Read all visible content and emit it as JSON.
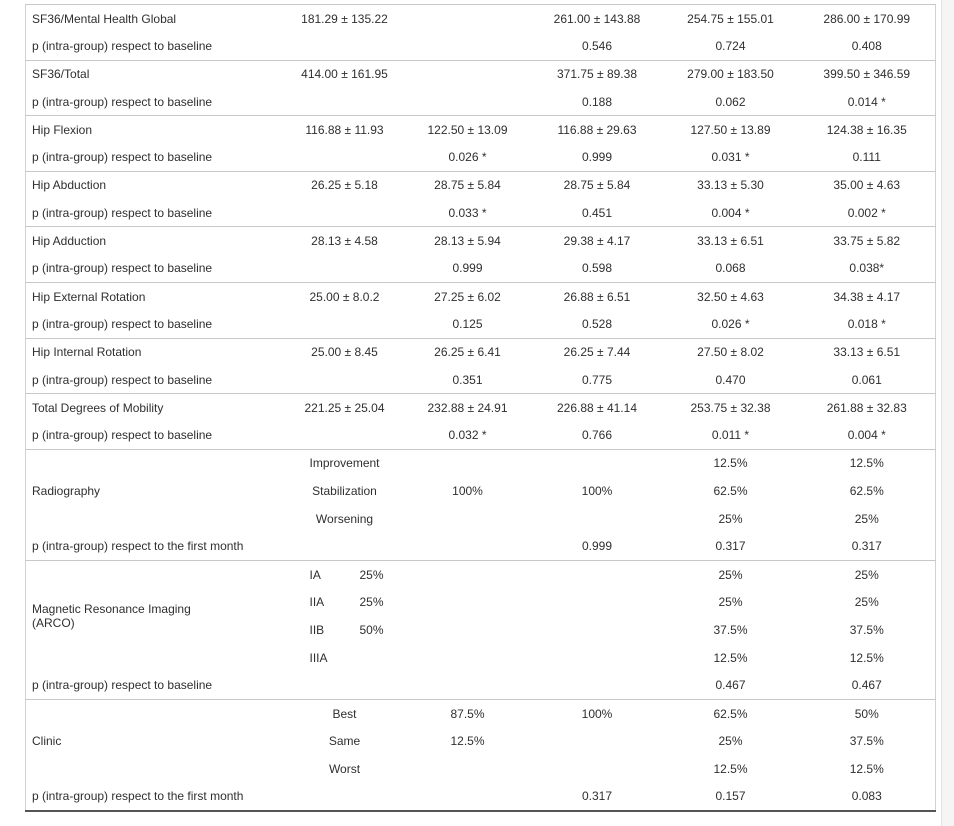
{
  "table": {
    "sections": [
      {
        "kind": "simple",
        "rows": [
          {
            "p": false,
            "label": "SF36/Mental Health Global",
            "cells": [
              "181.29 ± 135.22",
              "",
              "261.00 ± 143.88",
              "254.75 ± 155.01",
              "286.00 ± 170.99"
            ]
          },
          {
            "p": true,
            "label": "p (intra-group) respect to baseline",
            "cells": [
              "",
              "",
              "0.546",
              "0.724",
              "0.408"
            ]
          }
        ]
      },
      {
        "kind": "simple",
        "rows": [
          {
            "p": false,
            "label": "SF36/Total",
            "cells": [
              "414.00 ± 161.95",
              "",
              "371.75 ± 89.38",
              "279.00 ± 183.50",
              "399.50 ± 346.59"
            ]
          },
          {
            "p": true,
            "label": "p (intra-group) respect to baseline",
            "cells": [
              "",
              "",
              "0.188",
              "0.062",
              "0.014 *"
            ]
          }
        ]
      },
      {
        "kind": "simple",
        "rows": [
          {
            "p": false,
            "label": "Hip Flexion",
            "cells": [
              "116.88 ± 11.93",
              "122.50 ± 13.09",
              "116.88 ± 29.63",
              "127.50 ± 13.89",
              "124.38 ± 16.35"
            ]
          },
          {
            "p": true,
            "label": "p (intra-group) respect to baseline",
            "cells": [
              "",
              "0.026 *",
              "0.999",
              "0.031 *",
              "0.111"
            ]
          }
        ]
      },
      {
        "kind": "simple",
        "rows": [
          {
            "p": false,
            "label": "Hip Abduction",
            "cells": [
              "26.25 ± 5.18",
              "28.75 ± 5.84",
              "28.75 ± 5.84",
              "33.13 ± 5.30",
              "35.00 ± 4.63"
            ]
          },
          {
            "p": true,
            "label": "p (intra-group) respect to baseline",
            "cells": [
              "",
              "0.033 *",
              "0.451",
              "0.004 *",
              "0.002 *"
            ]
          }
        ]
      },
      {
        "kind": "simple",
        "rows": [
          {
            "p": false,
            "label": "Hip Adduction",
            "cells": [
              "28.13 ± 4.58",
              "28.13 ± 5.94",
              "29.38 ± 4.17",
              "33.13 ± 6.51",
              "33.75 ± 5.82"
            ]
          },
          {
            "p": true,
            "label": "p (intra-group) respect to baseline",
            "cells": [
              "",
              "0.999",
              "0.598",
              "0.068",
              "0.038*"
            ]
          }
        ]
      },
      {
        "kind": "simple",
        "rows": [
          {
            "p": false,
            "label": "Hip External Rotation",
            "cells": [
              "25.00 ± 8.0.2",
              "27.25 ± 6.02",
              "26.88 ± 6.51",
              "32.50 ± 4.63",
              "34.38 ± 4.17"
            ]
          },
          {
            "p": true,
            "label": "p (intra-group) respect to baseline",
            "cells": [
              "",
              "0.125",
              "0.528",
              "0.026 *",
              "0.018 *"
            ]
          }
        ]
      },
      {
        "kind": "simple",
        "rows": [
          {
            "p": false,
            "label": "Hip Internal Rotation",
            "cells": [
              "25.00 ± 8.45",
              "26.25 ± 6.41",
              "26.25 ± 7.44",
              "27.50 ± 8.02",
              "33.13 ± 6.51"
            ]
          },
          {
            "p": true,
            "label": "p (intra-group) respect to baseline",
            "cells": [
              "",
              "0.351",
              "0.775",
              "0.470",
              "0.061"
            ]
          }
        ]
      },
      {
        "kind": "simple",
        "rows": [
          {
            "p": false,
            "label": "Total Degrees of Mobility",
            "cells": [
              "221.25 ± 25.04",
              "232.88 ± 24.91",
              "226.88 ± 41.14",
              "253.75 ± 32.38",
              "261.88 ± 32.83"
            ]
          },
          {
            "p": true,
            "label": "p (intra-group) respect to baseline",
            "cells": [
              "",
              "0.032 *",
              "0.766",
              "0.011 *",
              "0.004 *"
            ]
          }
        ]
      },
      {
        "kind": "group",
        "label": "Radiography",
        "sub_rows": [
          {
            "name": "Improvement",
            "cells": [
              "",
              "",
              "12.5%",
              "12.5%"
            ]
          },
          {
            "name": "Stabilization",
            "cells": [
              "100%",
              "100%",
              "62.5%",
              "62.5%"
            ]
          },
          {
            "name": "Worsening",
            "cells": [
              "",
              "",
              "25%",
              "25%"
            ]
          }
        ],
        "p_row": {
          "label": "p (intra-group) respect to the first month",
          "cells": [
            "",
            "",
            "0.999",
            "0.317",
            "0.317"
          ]
        }
      },
      {
        "kind": "group",
        "label": "Magnetic Resonance Imaging\n(ARCO)",
        "sub_rows": [
          {
            "name": "IA",
            "pct": "25%",
            "cells": [
              "",
              "",
              "25%",
              "25%"
            ]
          },
          {
            "name": "IIA",
            "pct": "25%",
            "cells": [
              "",
              "",
              "25%",
              "25%"
            ]
          },
          {
            "name": "IIB",
            "pct": "50%",
            "cells": [
              "",
              "",
              "37.5%",
              "37.5%"
            ]
          },
          {
            "name": "IIIA",
            "pct": "",
            "cells": [
              "",
              "",
              "12.5%",
              "12.5%"
            ]
          }
        ],
        "p_row": {
          "label": "p (intra-group) respect to baseline",
          "cells": [
            "",
            "",
            "",
            "0.467",
            "0.467"
          ]
        }
      },
      {
        "kind": "group",
        "label": "Clinic",
        "sub_rows": [
          {
            "name": "Best",
            "cells": [
              "87.5%",
              "100%",
              "62.5%",
              "50%"
            ]
          },
          {
            "name": "Same",
            "cells": [
              "12.5%",
              "",
              "25%",
              "37.5%"
            ]
          },
          {
            "name": "Worst",
            "cells": [
              "",
              "",
              "12.5%",
              "12.5%"
            ]
          }
        ],
        "p_row": {
          "label": "p (intra-group) respect to the first month",
          "cells": [
            "",
            "",
            "0.317",
            "0.157",
            "0.083"
          ]
        }
      }
    ]
  }
}
